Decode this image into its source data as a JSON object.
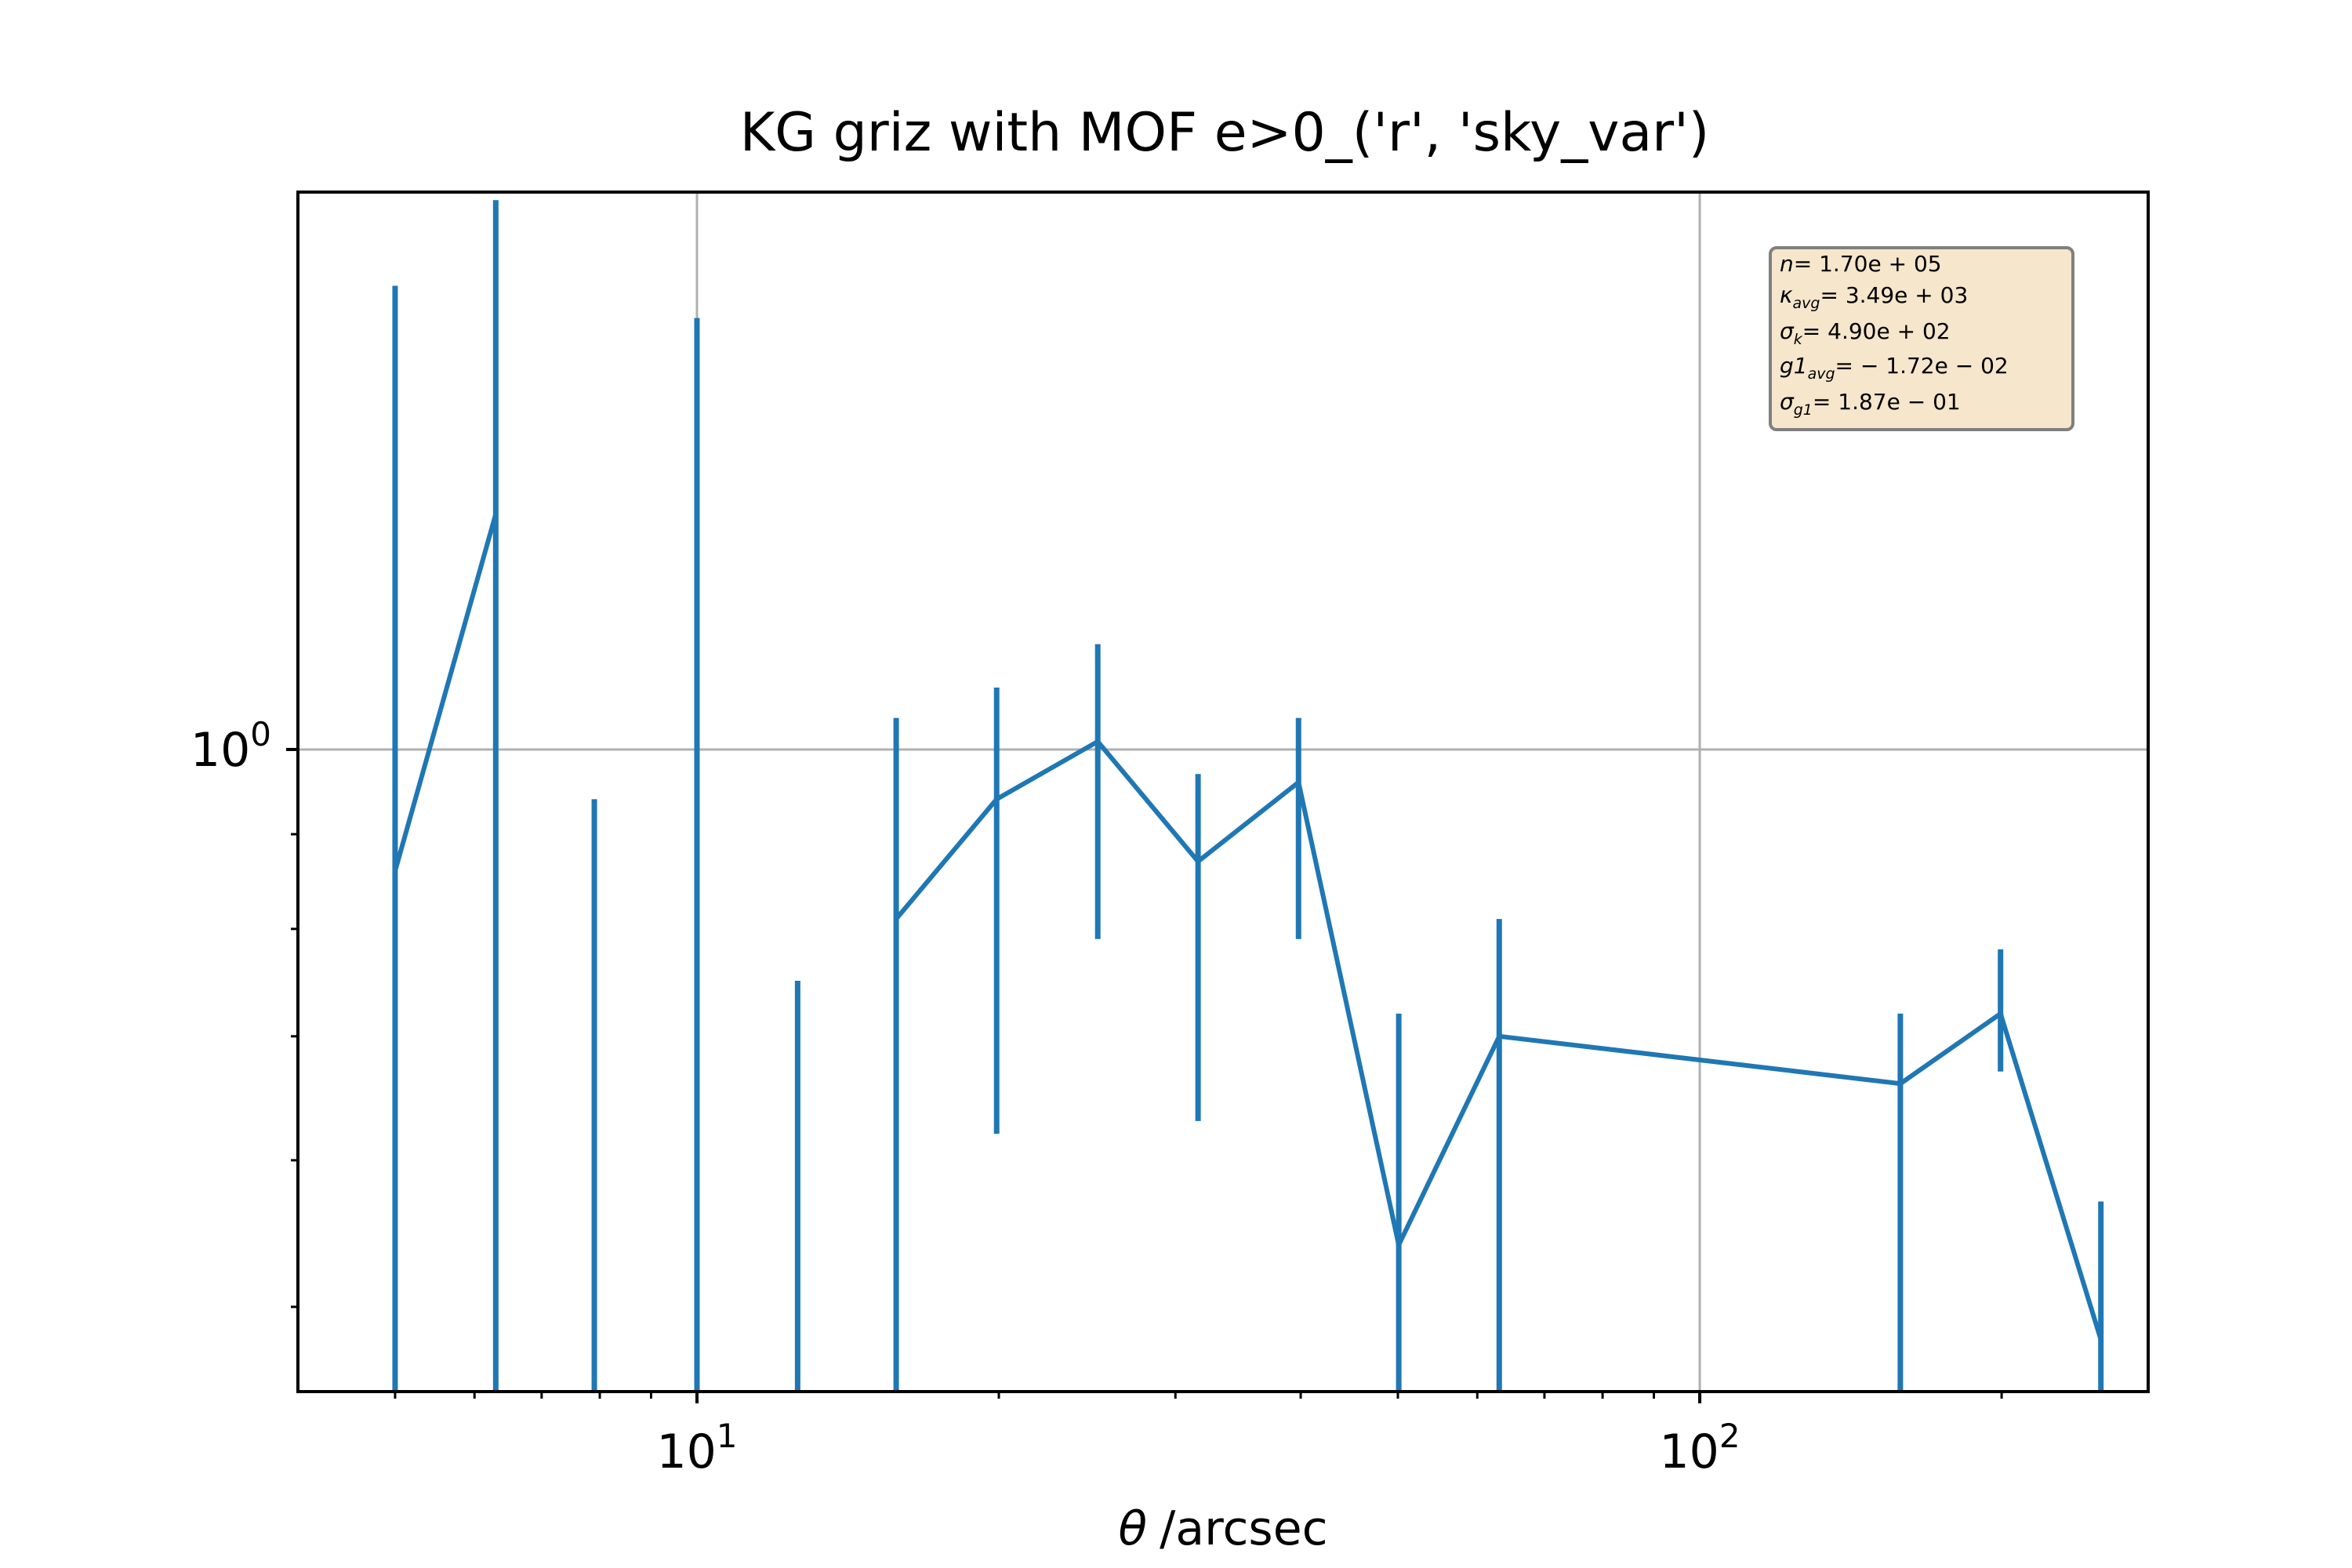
{
  "colors": {
    "series": "#1f77b4",
    "grid": "#b0b0b0",
    "stats_box_fill": "#f5e6cc",
    "stats_box_edge": "#7f7f7f"
  },
  "chart_data": {
    "type": "line",
    "title": "KG griz with MOF e>0_('r', 'sky_var')",
    "xlabel": "/arcsec",
    "xlabel_symbol": "θ",
    "ylabel": "",
    "xscale": "log",
    "yscale": "log",
    "xlim": [
      4.0,
      280
    ],
    "ylim": [
      0.45,
      2.0
    ],
    "x_ticks": [
      {
        "value": 10,
        "base": "10",
        "exp": "1"
      },
      {
        "value": 100,
        "base": "10",
        "exp": "2"
      }
    ],
    "y_ticks": [
      {
        "value": 1,
        "base": "10",
        "exp": "0"
      }
    ],
    "grid": true,
    "series": [
      {
        "points": [
          {
            "x": 5.0,
            "y": 0.86,
            "lo": 0.43,
            "hi": 1.78
          },
          {
            "x": 6.3,
            "y": 1.34,
            "lo": 0.43,
            "hi": 1.98
          },
          {
            "x": 7.9,
            "y": null,
            "lo": 0.43,
            "hi": 0.94
          },
          {
            "x": 10.0,
            "y": null,
            "lo": 0.43,
            "hi": 1.71
          },
          {
            "x": 12.6,
            "y": null,
            "lo": 0.43,
            "hi": 0.75
          },
          {
            "x": 15.8,
            "y": 0.81,
            "lo": 0.43,
            "hi": 1.04
          },
          {
            "x": 19.9,
            "y": 0.94,
            "lo": 0.62,
            "hi": 1.08
          },
          {
            "x": 25.1,
            "y": 1.01,
            "lo": 0.79,
            "hi": 1.14
          },
          {
            "x": 31.6,
            "y": 0.87,
            "lo": 0.63,
            "hi": 0.97
          },
          {
            "x": 39.8,
            "y": 0.96,
            "lo": 0.79,
            "hi": 1.04
          },
          {
            "x": 50.1,
            "y": 0.54,
            "lo": 0.43,
            "hi": 0.72
          },
          {
            "x": 63.1,
            "y": 0.7,
            "lo": 0.43,
            "hi": 0.81
          },
          {
            "x": 158.5,
            "y": 0.66,
            "lo": 0.43,
            "hi": 0.72
          },
          {
            "x": 199.5,
            "y": 0.72,
            "lo": 0.67,
            "hi": 0.78
          },
          {
            "x": 251.2,
            "y": 0.48,
            "lo": 0.43,
            "hi": 0.57
          }
        ]
      }
    ],
    "stats": [
      {
        "sym": "n",
        "sub": "",
        "value": "= 1.70e + 05"
      },
      {
        "sym": "κ",
        "sub": "avg",
        "value": "= 3.49e + 03"
      },
      {
        "sym": "σ",
        "sub": "k",
        "value": "= 4.90e + 02"
      },
      {
        "sym": "g1",
        "sub": "avg",
        "value": "= − 1.72e − 02"
      },
      {
        "sym": "σ",
        "sub": "g1",
        "value": "= 1.87e − 01"
      }
    ]
  }
}
